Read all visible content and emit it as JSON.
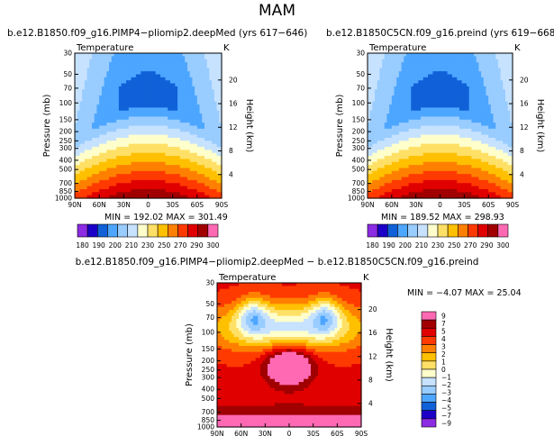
{
  "title": "MAM",
  "colors": {
    "absolute": [
      "#8b2be2",
      "#1d00c8",
      "#1060d8",
      "#4da6ff",
      "#99ccff",
      "#c6e2ff",
      "#ffffcc",
      "#ffe066",
      "#ffc000",
      "#ff8000",
      "#ff3a00",
      "#e00000",
      "#a00000",
      "#ff69b4"
    ],
    "diff": [
      "#8b2be2",
      "#1d00c8",
      "#1060d8",
      "#4da6ff",
      "#99ccff",
      "#c6e2ff",
      "#ffffcc",
      "#ffe066",
      "#ffc000",
      "#ff8000",
      "#ff3a00",
      "#e00000",
      "#a00000",
      "#ff69b4"
    ]
  },
  "chart_data": [
    {
      "type": "heatmap",
      "title": "b.e12.B1850.f09_g16.PIMP4−pliomip2.deepMed (yrs 617−646)",
      "variable": "Temperature",
      "units": "K",
      "xlabel": "",
      "ylabel": "Pressure (mb)",
      "y2label": "Height (km)",
      "x_ticks": [
        "90N",
        "60N",
        "30N",
        "0",
        "30S",
        "60S",
        "90S"
      ],
      "y_ticks": [
        "30",
        "50",
        "70",
        "100",
        "150",
        "200",
        "250",
        "300",
        "400",
        "500",
        "700",
        "850",
        "1000"
      ],
      "y2_ticks": [
        "20",
        "16",
        "12",
        "8",
        "4"
      ],
      "stats": "MIN = 192.02   MAX = 301.49",
      "min": 192.02,
      "max": 301.49
    },
    {
      "type": "heatmap",
      "title": "b.e12.B1850C5CN.f09_g16.preind (yrs 619−668)",
      "variable": "Temperature",
      "units": "K",
      "xlabel": "",
      "ylabel": "Pressure (mb)",
      "y2label": "Height (km)",
      "x_ticks": [
        "90N",
        "60N",
        "30N",
        "0",
        "30S",
        "60S",
        "90S"
      ],
      "y_ticks": [
        "30",
        "50",
        "70",
        "100",
        "150",
        "200",
        "250",
        "300",
        "400",
        "500",
        "700",
        "850",
        "1000"
      ],
      "y2_ticks": [
        "20",
        "16",
        "12",
        "8",
        "4"
      ],
      "stats": "MIN = 189.52   MAX = 298.93",
      "min": 189.52,
      "max": 298.93
    },
    {
      "type": "heatmap",
      "title": "b.e12.B1850.f09_g16.PIMP4−pliomip2.deepMed − b.e12.B1850C5CN.f09_g16.preind",
      "variable": "Temperature",
      "units": "K",
      "xlabel": "",
      "ylabel": "Pressure (mb)",
      "y2label": "Height (km)",
      "x_ticks": [
        "90N",
        "60N",
        "30N",
        "0",
        "30S",
        "60S",
        "90S"
      ],
      "y_ticks": [
        "30",
        "50",
        "70",
        "100",
        "150",
        "200",
        "250",
        "300",
        "400",
        "500",
        "700",
        "850",
        "1000"
      ],
      "y2_ticks": [
        "20",
        "16",
        "12",
        "8",
        "4"
      ],
      "stats": "MIN =   −4.07   MAX =   25.04",
      "min": -4.07,
      "max": 25.04
    }
  ],
  "colorbar_abs": {
    "labels": [
      "180",
      "190",
      "200",
      "210",
      "230",
      "250",
      "270",
      "290",
      "300"
    ]
  },
  "colorbar_diff": {
    "labels": [
      "9",
      "7",
      "5",
      "4",
      "3",
      "2",
      "1",
      "0",
      "−1",
      "−2",
      "−3",
      "−4",
      "−5",
      "−7",
      "−9"
    ]
  }
}
